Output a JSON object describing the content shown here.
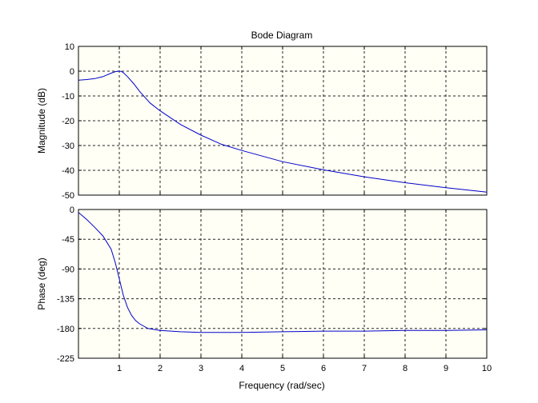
{
  "chart_data": {
    "type": "line",
    "title": "Bode Diagram",
    "xlabel": "Frequency (rad/sec)",
    "xlim": [
      0,
      10
    ],
    "xticks": [
      1,
      2,
      3,
      4,
      5,
      6,
      7,
      8,
      9,
      10
    ],
    "grid": true,
    "panels": [
      {
        "id": "magnitude",
        "ylabel": "Magnitude (dB)",
        "ylim": [
          -50,
          10
        ],
        "yticks": [
          10,
          0,
          -10,
          -20,
          -30,
          -40,
          -50
        ],
        "series": [
          {
            "x": [
              0.01,
              0.2,
              0.4,
              0.6,
              0.8,
              0.9,
              1.0,
              1.05,
              1.1,
              1.2,
              1.35,
              1.5,
              1.75,
              2.0,
              2.5,
              3.0,
              3.5,
              4.0,
              5.0,
              6.0,
              7.0,
              8.0,
              9.0,
              10.0
            ],
            "y": [
              -3.6,
              -3.4,
              -3.0,
              -2.2,
              -0.8,
              -0.2,
              0.0,
              -0.1,
              -0.6,
              -2.2,
              -5.0,
              -8.2,
              -12.8,
              -16.0,
              -21.5,
              -25.8,
              -29.5,
              -32.0,
              -36.5,
              -39.8,
              -42.6,
              -45.0,
              -47.0,
              -48.8
            ],
            "color": "#0000cc"
          }
        ]
      },
      {
        "id": "phase",
        "ylabel": "Phase (deg)",
        "ylim": [
          -225,
          0
        ],
        "yticks": [
          0,
          -45,
          -90,
          -135,
          -180,
          -225
        ],
        "series": [
          {
            "x": [
              0.01,
              0.2,
              0.4,
              0.6,
              0.8,
              0.9,
              1.0,
              1.1,
              1.2,
              1.3,
              1.4,
              1.5,
              1.7,
              2.0,
              2.5,
              3.0,
              4.0,
              5.0,
              6.0,
              7.0,
              8.0,
              9.0,
              10.0
            ],
            "y": [
              -5,
              -15,
              -27,
              -40,
              -60,
              -80,
              -105,
              -130,
              -148,
              -160,
              -168,
              -173,
              -180,
              -183,
              -185,
              -186,
              -186,
              -185,
              -184,
              -184,
              -183,
              -183,
              -182
            ],
            "color": "#0000cc"
          }
        ]
      }
    ]
  }
}
